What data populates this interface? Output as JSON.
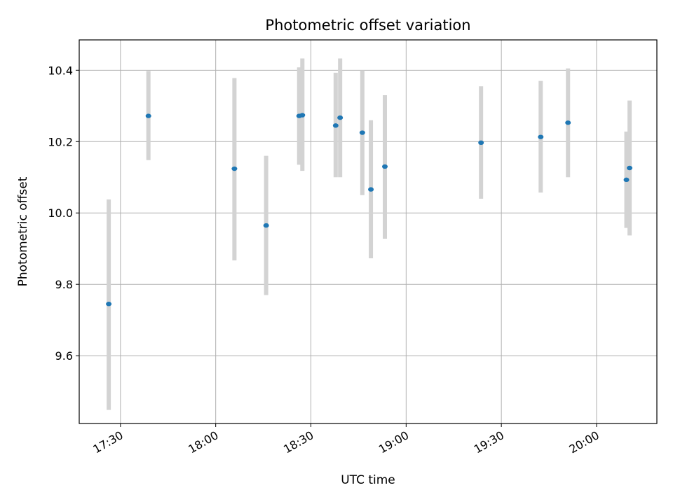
{
  "chart_data": {
    "type": "scatter",
    "title": "Photometric offset variation",
    "xlabel": "UTC time",
    "ylabel": "Photometric offset",
    "xlim": [
      "17:17",
      "20:19"
    ],
    "ylim": [
      9.41,
      10.485
    ],
    "x_ticks": [
      "17:30",
      "18:00",
      "18:30",
      "19:00",
      "19:30",
      "20:00"
    ],
    "y_ticks": [
      9.6,
      9.8,
      10.0,
      10.2,
      10.4
    ],
    "grid": true,
    "points": [
      {
        "x": "17:26.3",
        "y": 9.745,
        "err_low": 9.448,
        "err_high": 10.038
      },
      {
        "x": "17:38.8",
        "y": 10.272,
        "err_low": 10.148,
        "err_high": 10.398
      },
      {
        "x": "18:05.9",
        "y": 10.124,
        "err_low": 9.867,
        "err_high": 10.378
      },
      {
        "x": "18:15.9",
        "y": 9.965,
        "err_low": 9.77,
        "err_high": 10.16
      },
      {
        "x": "18:26.3",
        "y": 10.272,
        "err_low": 10.135,
        "err_high": 10.408
      },
      {
        "x": "18:27.3",
        "y": 10.274,
        "err_low": 10.118,
        "err_high": 10.433
      },
      {
        "x": "18:37.8",
        "y": 10.245,
        "err_low": 10.1,
        "err_high": 10.393
      },
      {
        "x": "18:39.2",
        "y": 10.267,
        "err_low": 10.1,
        "err_high": 10.433
      },
      {
        "x": "18:46.2",
        "y": 10.225,
        "err_low": 10.05,
        "err_high": 10.4
      },
      {
        "x": "18:48.9",
        "y": 10.066,
        "err_low": 9.873,
        "err_high": 10.26
      },
      {
        "x": "18:53.3",
        "y": 10.13,
        "err_low": 9.928,
        "err_high": 10.33
      },
      {
        "x": "19:23.6",
        "y": 10.197,
        "err_low": 10.04,
        "err_high": 10.355
      },
      {
        "x": "19:42.4",
        "y": 10.213,
        "err_low": 10.057,
        "err_high": 10.37
      },
      {
        "x": "19:51.0",
        "y": 10.253,
        "err_low": 10.1,
        "err_high": 10.405
      },
      {
        "x": "20:09.4",
        "y": 10.093,
        "err_low": 9.958,
        "err_high": 10.228
      },
      {
        "x": "20:10.4",
        "y": 10.126,
        "err_low": 9.937,
        "err_high": 10.315
      }
    ],
    "colors": {
      "points": "#1f77b4",
      "error_bars": "#d3d3d3",
      "grid": "#b0b0b0"
    }
  }
}
